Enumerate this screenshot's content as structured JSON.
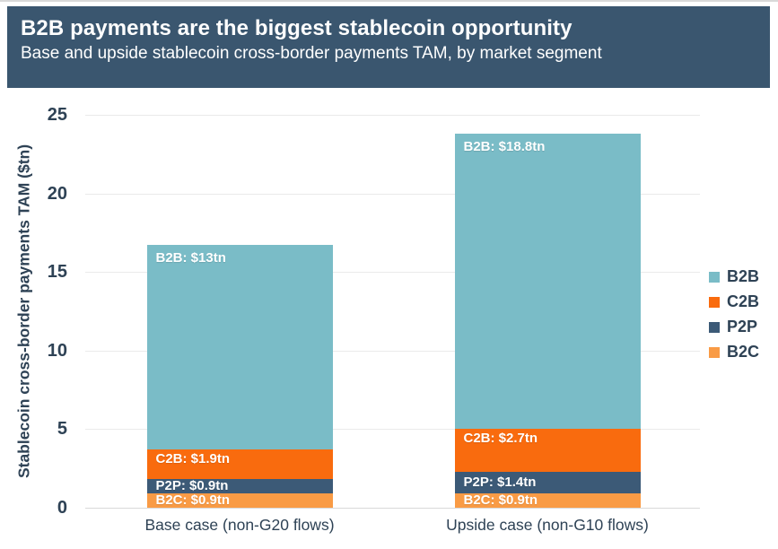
{
  "header": {
    "title": "B2B payments are the biggest stablecoin opportunity",
    "subtitle": "Base and upside stablecoin cross-border payments TAM, by market segment"
  },
  "chart_data": {
    "type": "bar",
    "stacked": true,
    "title": "B2B payments are the biggest stablecoin opportunity",
    "subtitle": "Base and upside stablecoin cross-border payments TAM, by market segment",
    "ylabel": "Stablecoin cross-border payments TAM ($tn)",
    "xlabel": "",
    "ylim": [
      0,
      25
    ],
    "yticks": [
      0,
      5,
      10,
      15,
      20,
      25
    ],
    "grid": true,
    "categories": [
      "Base case (non-G20 flows)",
      "Upside case (non-G10 flows)"
    ],
    "series": [
      {
        "name": "B2C",
        "color": "#F99B45",
        "values": [
          0.9,
          0.9
        ],
        "labels": [
          "B2C: $0.9tn",
          "B2C: $0.9tn"
        ]
      },
      {
        "name": "P2P",
        "color": "#3C5A77",
        "values": [
          0.9,
          1.4
        ],
        "labels": [
          "P2P: $0.9tn",
          "P2P: $1.4tn"
        ]
      },
      {
        "name": "C2B",
        "color": "#F96B0E",
        "values": [
          1.9,
          2.7
        ],
        "labels": [
          "C2B: $1.9tn",
          "C2B: $2.7tn"
        ]
      },
      {
        "name": "B2B",
        "color": "#7ABCC7",
        "values": [
          13,
          18.8
        ],
        "labels": [
          "B2B: $13tn",
          "B2B: $18.8tn"
        ]
      }
    ],
    "totals": [
      16.7,
      23.8
    ],
    "legend": {
      "position": "right",
      "order": [
        "B2B",
        "C2B",
        "P2P",
        "B2C"
      ]
    }
  },
  "colors": {
    "header_background": "#3A566F",
    "header_text": "#FFFFFF",
    "axis_text": "#2E4255",
    "gridline": "#EAEAEA",
    "baseline": "#D9D9D9",
    "segment_b2b": "#7ABCC7",
    "segment_c2b": "#F96B0E",
    "segment_p2p": "#3C5A77",
    "segment_b2c": "#F99B45"
  }
}
